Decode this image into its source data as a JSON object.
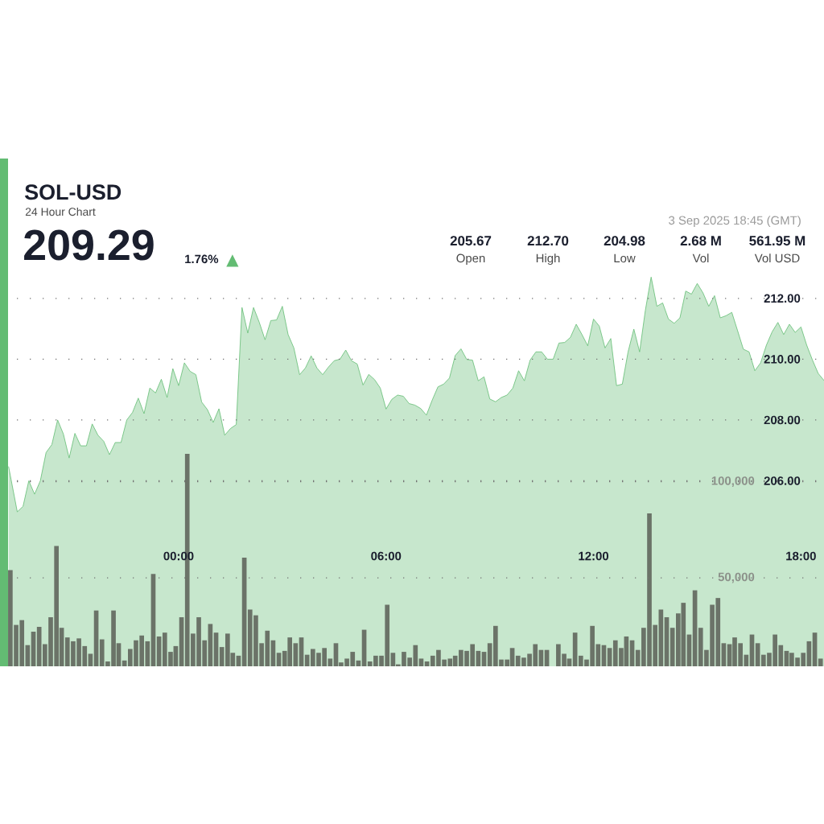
{
  "chart_data": [
    {
      "type": "area",
      "title": "SOL-USD",
      "subtitle": "24 Hour Chart",
      "annotations": [
        "209.29",
        "1.76%",
        "▲",
        "205.67",
        "Open",
        "212.70",
        "High",
        "204.98",
        "Low",
        "2.68 M",
        "Vol",
        "561.95 M",
        "Vol USD",
        "3 Sep 2025 18:45 (GMT)"
      ],
      "color": "#63bc73",
      "x": [
        "2025-09-02T19:05",
        "2025-09-02T19:20",
        "2025-09-02T19:30",
        "2025-09-02T19:40",
        "2025-09-02T19:50",
        "2025-09-02T20:00",
        "2025-09-02T20:10",
        "2025-09-02T20:20",
        "2025-09-02T20:30",
        "2025-09-02T20:40",
        "2025-09-02T20:50",
        "2025-09-02T21:00",
        "2025-09-02T21:10",
        "2025-09-02T21:20",
        "2025-09-02T21:30",
        "2025-09-02T21:40",
        "2025-09-02T21:50",
        "2025-09-02T22:00",
        "2025-09-02T22:10",
        "2025-09-02T22:20",
        "2025-09-02T22:30",
        "2025-09-02T22:40",
        "2025-09-02T22:50",
        "2025-09-02T23:00",
        "2025-09-02T23:10",
        "2025-09-02T23:20",
        "2025-09-02T23:30",
        "2025-09-02T23:40",
        "2025-09-02T23:50",
        "2025-09-03T00:00",
        "2025-09-03T00:10",
        "2025-09-03T00:20",
        "2025-09-03T00:30",
        "2025-09-03T00:40",
        "2025-09-03T00:50",
        "2025-09-03T01:00",
        "2025-09-03T01:10",
        "2025-09-03T01:20",
        "2025-09-03T01:30",
        "2025-09-03T01:40",
        "2025-09-03T01:50",
        "2025-09-03T02:00",
        "2025-09-03T02:10",
        "2025-09-03T02:20",
        "2025-09-03T02:30",
        "2025-09-03T02:40",
        "2025-09-03T02:50",
        "2025-09-03T03:00",
        "2025-09-03T03:10",
        "2025-09-03T03:20",
        "2025-09-03T03:30",
        "2025-09-03T03:40",
        "2025-09-03T03:50",
        "2025-09-03T04:00",
        "2025-09-03T04:10",
        "2025-09-03T04:20",
        "2025-09-03T04:30",
        "2025-09-03T04:40",
        "2025-09-03T04:50",
        "2025-09-03T05:00",
        "2025-09-03T05:10",
        "2025-09-03T05:20",
        "2025-09-03T05:30",
        "2025-09-03T05:40",
        "2025-09-03T05:50",
        "2025-09-03T06:00",
        "2025-09-03T06:10",
        "2025-09-03T06:20",
        "2025-09-03T06:30",
        "2025-09-03T06:40",
        "2025-09-03T06:50",
        "2025-09-03T07:00",
        "2025-09-03T07:10",
        "2025-09-03T07:20",
        "2025-09-03T07:30",
        "2025-09-03T07:40",
        "2025-09-03T07:50",
        "2025-09-03T08:00",
        "2025-09-03T08:10",
        "2025-09-03T08:20",
        "2025-09-03T08:30",
        "2025-09-03T08:40",
        "2025-09-03T08:50",
        "2025-09-03T09:00",
        "2025-09-03T09:10",
        "2025-09-03T09:20",
        "2025-09-03T09:30",
        "2025-09-03T09:40",
        "2025-09-03T09:50",
        "2025-09-03T10:00",
        "2025-09-03T10:10",
        "2025-09-03T10:20",
        "2025-09-03T10:30",
        "2025-09-03T10:40",
        "2025-09-03T10:50",
        "2025-09-03T11:00",
        "2025-09-03T11:10",
        "2025-09-03T11:20",
        "2025-09-03T11:30",
        "2025-09-03T11:40",
        "2025-09-03T11:50",
        "2025-09-03T12:00",
        "2025-09-03T12:10",
        "2025-09-03T12:20",
        "2025-09-03T12:30",
        "2025-09-03T12:40",
        "2025-09-03T12:50",
        "2025-09-03T13:00",
        "2025-09-03T13:10",
        "2025-09-03T13:20",
        "2025-09-03T13:30",
        "2025-09-03T13:40",
        "2025-09-03T13:50",
        "2025-09-03T14:00",
        "2025-09-03T14:10",
        "2025-09-03T14:20",
        "2025-09-03T14:30",
        "2025-09-03T14:40",
        "2025-09-03T14:50",
        "2025-09-03T15:00",
        "2025-09-03T15:10",
        "2025-09-03T15:20",
        "2025-09-03T15:30",
        "2025-09-03T15:40",
        "2025-09-03T15:50",
        "2025-09-03T16:00",
        "2025-09-03T16:10",
        "2025-09-03T16:20",
        "2025-09-03T16:30",
        "2025-09-03T16:40",
        "2025-09-03T16:50",
        "2025-09-03T17:00",
        "2025-09-03T17:10",
        "2025-09-03T17:20",
        "2025-09-03T17:30",
        "2025-09-03T17:40",
        "2025-09-03T17:50",
        "2025-09-03T18:00",
        "2025-09-03T18:10",
        "2025-09-03T18:20",
        "2025-09-03T18:30",
        "2025-09-03T18:40"
      ],
      "values": [
        206.46,
        204.98,
        205.16,
        206.0,
        205.56,
        206.0,
        206.93,
        207.19,
        208.0,
        207.54,
        206.75,
        207.56,
        207.15,
        207.15,
        207.87,
        207.5,
        207.3,
        206.86,
        207.26,
        207.26,
        208.0,
        208.25,
        208.72,
        208.21,
        209.05,
        208.89,
        209.34,
        208.74,
        209.69,
        209.13,
        209.88,
        209.6,
        209.49,
        208.59,
        208.34,
        207.92,
        208.37,
        207.5,
        207.72,
        207.85,
        211.7,
        210.86,
        211.7,
        211.21,
        210.64,
        211.27,
        211.29,
        211.74,
        210.81,
        210.37,
        209.49,
        209.71,
        210.11,
        209.71,
        209.49,
        209.74,
        209.95,
        210.0,
        210.3,
        209.95,
        209.84,
        209.15,
        209.5,
        209.33,
        209.05,
        208.36,
        208.68,
        208.82,
        208.78,
        208.54,
        208.49,
        208.38,
        208.16,
        208.65,
        209.09,
        209.18,
        209.38,
        210.12,
        210.34,
        209.99,
        209.97,
        209.29,
        209.42,
        208.69,
        208.6,
        208.74,
        208.82,
        209.05,
        209.62,
        209.29,
        209.97,
        210.24,
        210.24,
        210.0,
        210.0,
        210.53,
        210.55,
        210.72,
        211.15,
        210.81,
        210.44,
        211.32,
        211.09,
        210.37,
        210.68,
        209.13,
        209.18,
        210.24,
        210.99,
        210.24,
        211.61,
        212.7,
        211.74,
        211.85,
        211.32,
        211.18,
        211.36,
        212.24,
        212.14,
        212.49,
        212.18,
        211.74,
        212.09,
        211.36,
        211.43,
        211.54,
        210.94,
        210.33,
        210.24,
        209.62,
        209.88,
        210.46,
        210.9,
        211.21,
        210.81,
        211.15,
        210.88,
        211.06,
        210.46,
        209.97,
        209.53,
        209.3
      ],
      "xlim": [
        "2025-09-02T18:57",
        "2025-09-03T18:40"
      ],
      "ylim": [
        199.9,
        216.6
      ],
      "yticks": [
        {
          "value": 206,
          "label": "206.00"
        },
        {
          "value": 208,
          "label": "208.00"
        },
        {
          "value": 210,
          "label": "210.00"
        },
        {
          "value": 212,
          "label": "212.00"
        }
      ],
      "grid": "y",
      "tick_labels": "y"
    },
    {
      "type": "bar",
      "x": [
        "2025-09-02T19:08",
        "2025-09-02T19:18",
        "2025-09-02T19:28",
        "2025-09-02T19:38",
        "2025-09-02T19:48",
        "2025-09-02T19:58",
        "2025-09-02T20:08",
        "2025-09-02T20:18",
        "2025-09-02T20:28",
        "2025-09-02T20:37",
        "2025-09-02T20:47",
        "2025-09-02T20:57",
        "2025-09-02T21:07",
        "2025-09-02T21:17",
        "2025-09-02T21:27",
        "2025-09-02T21:37",
        "2025-09-02T21:47",
        "2025-09-02T21:57",
        "2025-09-02T22:07",
        "2025-09-02T22:16",
        "2025-09-02T22:26",
        "2025-09-02T22:36",
        "2025-09-02T22:46",
        "2025-09-02T22:56",
        "2025-09-02T23:06",
        "2025-09-02T23:16",
        "2025-09-02T23:26",
        "2025-09-02T23:36",
        "2025-09-02T23:46",
        "2025-09-02T23:55",
        "2025-09-03T00:05",
        "2025-09-03T00:15",
        "2025-09-03T00:25",
        "2025-09-03T00:35",
        "2025-09-03T00:45",
        "2025-09-03T00:55",
        "2025-09-03T01:05",
        "2025-09-03T01:15",
        "2025-09-03T01:25",
        "2025-09-03T01:34",
        "2025-09-03T01:44",
        "2025-09-03T01:54",
        "2025-09-03T02:04",
        "2025-09-03T02:14",
        "2025-09-03T02:24",
        "2025-09-03T02:34",
        "2025-09-03T02:44",
        "2025-09-03T02:54",
        "2025-09-03T03:04",
        "2025-09-03T03:13",
        "2025-09-03T03:23",
        "2025-09-03T03:33",
        "2025-09-03T03:43",
        "2025-09-03T03:53",
        "2025-09-03T04:03",
        "2025-09-03T04:13",
        "2025-09-03T04:23",
        "2025-09-03T04:33",
        "2025-09-03T04:42",
        "2025-09-03T04:52",
        "2025-09-03T05:02",
        "2025-09-03T05:12",
        "2025-09-03T05:22",
        "2025-09-03T05:32",
        "2025-09-03T05:42",
        "2025-09-03T05:52",
        "2025-09-03T06:02",
        "2025-09-03T06:12",
        "2025-09-03T06:21",
        "2025-09-03T06:31",
        "2025-09-03T06:41",
        "2025-09-03T06:51",
        "2025-09-03T07:01",
        "2025-09-03T07:11",
        "2025-09-03T07:21",
        "2025-09-03T07:31",
        "2025-09-03T07:41",
        "2025-09-03T07:51",
        "2025-09-03T08:00",
        "2025-09-03T08:10",
        "2025-09-03T08:20",
        "2025-09-03T08:30",
        "2025-09-03T08:40",
        "2025-09-03T08:50",
        "2025-09-03T09:00",
        "2025-09-03T09:10",
        "2025-09-03T09:20",
        "2025-09-03T09:30",
        "2025-09-03T09:39",
        "2025-09-03T09:49",
        "2025-09-03T09:59",
        "2025-09-03T10:09",
        "2025-09-03T10:19",
        "2025-09-03T10:29",
        "2025-09-03T10:39",
        "2025-09-03T10:49",
        "2025-09-03T10:59",
        "2025-09-03T11:09",
        "2025-09-03T11:18",
        "2025-09-03T11:28",
        "2025-09-03T11:38",
        "2025-09-03T11:48",
        "2025-09-03T11:58",
        "2025-09-03T12:08",
        "2025-09-03T12:18",
        "2025-09-03T12:28",
        "2025-09-03T12:38",
        "2025-09-03T12:48",
        "2025-09-03T12:57",
        "2025-09-03T13:07",
        "2025-09-03T13:17",
        "2025-09-03T13:27",
        "2025-09-03T13:37",
        "2025-09-03T13:47",
        "2025-09-03T13:57",
        "2025-09-03T14:07",
        "2025-09-03T14:17",
        "2025-09-03T14:27",
        "2025-09-03T14:36",
        "2025-09-03T14:46",
        "2025-09-03T14:56",
        "2025-09-03T15:06",
        "2025-09-03T15:16",
        "2025-09-03T15:26",
        "2025-09-03T15:36",
        "2025-09-03T15:46",
        "2025-09-03T15:56",
        "2025-09-03T16:05",
        "2025-09-03T16:15",
        "2025-09-03T16:25",
        "2025-09-03T16:35",
        "2025-09-03T16:45",
        "2025-09-03T16:55",
        "2025-09-03T17:05",
        "2025-09-03T17:15",
        "2025-09-03T17:25",
        "2025-09-03T17:35",
        "2025-09-03T17:44",
        "2025-09-03T17:54",
        "2025-09-03T18:04",
        "2025-09-03T18:14",
        "2025-09-03T18:24",
        "2025-09-03T18:34"
      ],
      "values": [
        54000,
        25500,
        28000,
        15000,
        22000,
        24500,
        15500,
        29500,
        66500,
        24000,
        19000,
        17000,
        18500,
        14500,
        10500,
        33000,
        18000,
        6500,
        33000,
        16000,
        7000,
        13000,
        17500,
        20000,
        17000,
        52000,
        19500,
        21500,
        11500,
        14500,
        29500,
        114500,
        21000,
        29500,
        17500,
        26000,
        21500,
        14000,
        21000,
        11000,
        9500,
        60500,
        33500,
        30500,
        16000,
        22500,
        17500,
        11000,
        12000,
        19000,
        16000,
        19000,
        10000,
        13000,
        11000,
        13500,
        8000,
        16000,
        6000,
        8000,
        11500,
        7000,
        23000,
        6500,
        9500,
        9500,
        36000,
        11000,
        5000,
        11500,
        8500,
        15000,
        8000,
        6500,
        9500,
        12500,
        7500,
        8000,
        9500,
        12500,
        12000,
        15500,
        12000,
        11500,
        16000,
        25000,
        7500,
        7500,
        13500,
        9500,
        8500,
        10500,
        15500,
        12500,
        12500,
        null,
        15500,
        10500,
        8000,
        21500,
        9500,
        7500,
        25000,
        15500,
        15000,
        13500,
        17500,
        13500,
        19500,
        17500,
        12500,
        24000,
        83500,
        25500,
        33500,
        29500,
        24000,
        31500,
        37000,
        20500,
        43500,
        24000,
        12500,
        36000,
        39500,
        16000,
        15500,
        19000,
        16000,
        10000,
        20500,
        16000,
        10000,
        11000,
        20500,
        15000,
        12000,
        11000,
        8500,
        11000,
        17000,
        21500,
        8000
      ],
      "color": "#6b7368",
      "xlim": [
        "2025-09-02T18:57",
        "2025-09-03T18:40"
      ],
      "xticks": [
        {
          "value": "2025-09-03T00:00",
          "label": "00:00"
        },
        {
          "value": "2025-09-03T06:00",
          "label": "06:00"
        },
        {
          "value": "2025-09-03T12:00",
          "label": "12:00"
        },
        {
          "value": "2025-09-03T18:00",
          "label": "18:00"
        }
      ],
      "ylim": [
        4000,
        268000
      ],
      "yticks": [
        {
          "value": 50000,
          "label": "50,000"
        },
        {
          "value": 100000,
          "label": "100,000"
        }
      ],
      "grid": "y"
    }
  ]
}
